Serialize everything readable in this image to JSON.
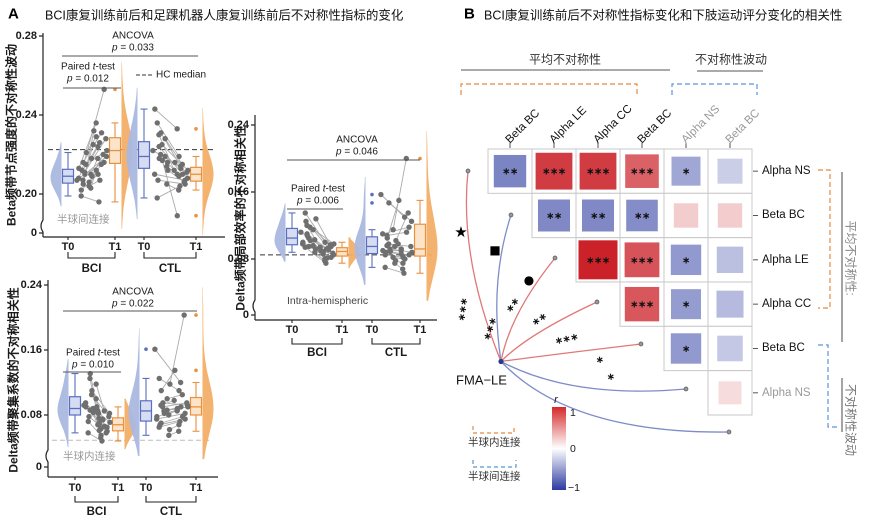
{
  "panel_a": {
    "label": "A",
    "title": "BCI康复训练前后和足踝机器人康复训练前后不对称性指标的变化"
  },
  "panel_b": {
    "label": "B",
    "title": "BCI康复训练前后不对称性指标变化和下肢运动评分变化的相关性",
    "top_groups": [
      {
        "label": "平均不对称性",
        "bracket_color": "#e8883c"
      },
      {
        "label": "不对称性波动",
        "bracket_color": "#5b93d8"
      }
    ],
    "side_groups": [
      {
        "label": "平均不对称性:",
        "bracket_color": "#e8883c"
      },
      {
        "label": "不对称性波动",
        "bracket_color": "#5b93d8"
      }
    ],
    "node_label": "FMA−LE",
    "colorbar": {
      "label": "r",
      "tick_top": "1",
      "tick_mid": "0",
      "tick_bottom": "−1",
      "pos_color": "#d42a2a",
      "neg_color": "#2b3ba0"
    },
    "legend": [
      {
        "label": "半球内连接",
        "color": "#e8883c"
      },
      {
        "label": "半球间连接",
        "color": "#5b93d8"
      }
    ]
  },
  "chart_data": [
    {
      "type": "raincloud_paired_box",
      "id": "A1",
      "ylabel": "Beta频带节点强度的不对称性波动",
      "region_note": "半球间连接",
      "yticks": [
        0,
        0.2,
        0.24,
        0.28
      ],
      "ylim": [
        0.19,
        0.28
      ],
      "hc_median": 0.2225,
      "stats": {
        "ancova_label": "ANCOVA",
        "ancova_p": "p = 0.033",
        "paired_label": "Paired t-test",
        "paired_p": "p = 0.012",
        "hc_label": "HC median"
      },
      "xticklabels": [
        "T0",
        "T1",
        "T0",
        "T1"
      ],
      "group_labels": [
        "BCI",
        "CTL"
      ],
      "series": [
        {
          "name": "BCI",
          "t0": [
            0.203,
            0.207,
            0.21,
            0.212,
            0.205,
            0.215,
            0.208,
            0.202,
            0.211,
            0.218,
            0.206,
            0.213,
            0.209,
            0.204,
            0.216,
            0.21,
            0.207,
            0.221,
            0.199
          ],
          "t1": [
            0.212,
            0.226,
            0.219,
            0.253,
            0.232,
            0.222,
            0.216,
            0.21,
            0.228,
            0.224,
            0.215,
            0.236,
            0.22,
            0.207,
            0.231,
            0.218,
            0.225,
            0.229,
            0.196
          ]
        },
        {
          "name": "CTL",
          "t0": [
            0.214,
            0.222,
            0.231,
            0.207,
            0.218,
            0.225,
            0.21,
            0.236,
            0.22,
            0.216,
            0.228,
            0.243,
            0.212,
            0.219,
            0.224,
            0.205,
            0.23,
            0.217,
            0.198
          ],
          "t1": [
            0.21,
            0.214,
            0.208,
            0.205,
            0.216,
            0.212,
            0.207,
            0.219,
            0.211,
            0.209,
            0.215,
            0.233,
            0.206,
            0.213,
            0.21,
            0.202,
            0.212,
            0.189,
            0.204
          ]
        }
      ]
    },
    {
      "type": "raincloud_paired_box",
      "id": "A2",
      "ylabel": "Delta频带聚集系数的不对称相关性",
      "region_note": "半球内连接",
      "yticks": [
        0,
        0.08,
        0.16,
        0.24
      ],
      "ylim": [
        0.04,
        0.24
      ],
      "hc_median": 0.049,
      "stats": {
        "ancova_label": "ANCOVA",
        "ancova_p": "p = 0.022",
        "paired_label": "Paired t-test",
        "paired_p": "p = 0.010",
        "hc_label": ""
      },
      "xticklabels": [
        "T0",
        "T1",
        "T0",
        "T1"
      ],
      "group_labels": [
        "BCI",
        "CTL"
      ],
      "series": [
        {
          "name": "BCI",
          "t0": [
            0.085,
            0.092,
            0.11,
            0.078,
            0.131,
            0.088,
            0.095,
            0.072,
            0.105,
            0.082,
            0.118,
            0.09,
            0.076,
            0.1,
            0.086,
            0.068,
            0.125,
            0.083,
            0.058
          ],
          "t1": [
            0.068,
            0.075,
            0.082,
            0.06,
            0.09,
            0.071,
            0.065,
            0.055,
            0.078,
            0.063,
            0.085,
            0.07,
            0.058,
            0.074,
            0.066,
            0.052,
            0.088,
            0.061,
            0.048
          ]
        },
        {
          "name": "CTL",
          "t0": [
            0.08,
            0.161,
            0.095,
            0.068,
            0.11,
            0.085,
            0.075,
            0.125,
            0.09,
            0.062,
            0.1,
            0.078,
            0.118,
            0.086,
            0.07,
            0.055,
            0.092,
            0.082,
            0.065
          ],
          "t1": [
            0.088,
            0.12,
            0.092,
            0.075,
            0.135,
            0.09,
            0.082,
            0.11,
            0.095,
            0.068,
            0.105,
            0.085,
            0.203,
            0.09,
            0.078,
            0.06,
            0.098,
            0.086,
            0.072
          ]
        }
      ]
    },
    {
      "type": "raincloud_paired_box",
      "id": "A3",
      "ylabel": "Delta频带局部效率的不对称相关性",
      "region_note": "Intra-hemispheric",
      "yticks": [
        0,
        0.08,
        0.16,
        0.24
      ],
      "ylim": [
        0.05,
        0.24
      ],
      "hc_median": 0.085,
      "stats": {
        "ancova_label": "ANCOVA",
        "ancova_p": "p = 0.046",
        "paired_label": "Paired t-test",
        "paired_p": "p = 0.006",
        "hc_label": ""
      },
      "xticklabels": [
        "T0",
        "T1",
        "T0",
        "T1"
      ],
      "group_labels": [
        "BCI",
        "CTL"
      ],
      "series": [
        {
          "name": "BCI",
          "t0": [
            0.103,
            0.112,
            0.095,
            0.125,
            0.108,
            0.118,
            0.098,
            0.135,
            0.105,
            0.092,
            0.115,
            0.1,
            0.128,
            0.096,
            0.11,
            0.088,
            0.12,
            0.102,
            0.094
          ],
          "t1": [
            0.088,
            0.092,
            0.085,
            0.095,
            0.09,
            0.098,
            0.082,
            0.1,
            0.087,
            0.08,
            0.093,
            0.086,
            0.097,
            0.081,
            0.091,
            0.078,
            0.094,
            0.089,
            0.075
          ]
        },
        {
          "name": "CTL",
          "t0": [
            0.095,
            0.157,
            0.147,
            0.088,
            0.105,
            0.092,
            0.11,
            0.085,
            0.098,
            0.078,
            0.115,
            0.09,
            0.102,
            0.082,
            0.108,
            0.075,
            0.096,
            0.089,
            0.07
          ],
          "t1": [
            0.092,
            0.13,
            0.125,
            0.085,
            0.15,
            0.088,
            0.118,
            0.082,
            0.095,
            0.075,
            0.2,
            0.09,
            0.135,
            0.08,
            0.112,
            0.068,
            0.098,
            0.086,
            0.063
          ]
        }
      ]
    },
    {
      "type": "correlation_matrix",
      "id": "B",
      "columns": [
        {
          "label": "Beta BC",
          "group": "avg"
        },
        {
          "label": "Alpha LE",
          "group": "avg"
        },
        {
          "label": "Alpha CC",
          "group": "avg"
        },
        {
          "label": "Beta BC",
          "group": "avg"
        },
        {
          "label": "Alpha NS",
          "group": "fluct"
        },
        {
          "label": "Beta BC",
          "group": "fluct"
        }
      ],
      "rows": [
        {
          "label": "Alpha NS",
          "group": "avg"
        },
        {
          "label": "Beta BC",
          "group": "avg"
        },
        {
          "label": "Alpha LE",
          "group": "avg"
        },
        {
          "label": "Alpha CC",
          "group": "avg"
        },
        {
          "label": "Beta BC",
          "group": "avg"
        },
        {
          "label": "Alpha NS",
          "group": "fluct"
        }
      ],
      "cells": [
        {
          "row": 0,
          "col": 0,
          "r": -0.62,
          "sig": "**"
        },
        {
          "row": 0,
          "col": 1,
          "r": 0.84,
          "sig": "***"
        },
        {
          "row": 0,
          "col": 2,
          "r": 0.84,
          "sig": "***"
        },
        {
          "row": 0,
          "col": 3,
          "r": 0.68,
          "sig": "***"
        },
        {
          "row": 0,
          "col": 4,
          "r": -0.45,
          "sig": "*"
        },
        {
          "row": 0,
          "col": 5,
          "r": -0.25,
          "sig": ""
        },
        {
          "row": 1,
          "col": 1,
          "r": -0.6,
          "sig": "**"
        },
        {
          "row": 1,
          "col": 2,
          "r": -0.6,
          "sig": "**"
        },
        {
          "row": 1,
          "col": 3,
          "r": -0.58,
          "sig": "**"
        },
        {
          "row": 1,
          "col": 4,
          "r": 0.22,
          "sig": ""
        },
        {
          "row": 1,
          "col": 5,
          "r": 0.22,
          "sig": ""
        },
        {
          "row": 2,
          "col": 2,
          "r": 0.95,
          "sig": "***"
        },
        {
          "row": 2,
          "col": 3,
          "r": 0.74,
          "sig": "***"
        },
        {
          "row": 2,
          "col": 4,
          "r": -0.52,
          "sig": "*"
        },
        {
          "row": 2,
          "col": 5,
          "r": -0.32,
          "sig": ""
        },
        {
          "row": 3,
          "col": 3,
          "r": 0.72,
          "sig": "***"
        },
        {
          "row": 3,
          "col": 4,
          "r": -0.5,
          "sig": "*"
        },
        {
          "row": 3,
          "col": 5,
          "r": -0.35,
          "sig": ""
        },
        {
          "row": 4,
          "col": 4,
          "r": -0.52,
          "sig": "*"
        },
        {
          "row": 4,
          "col": 5,
          "r": -0.28,
          "sig": ""
        },
        {
          "row": 5,
          "col": 5,
          "r": 0.15,
          "sig": ""
        }
      ],
      "fma_links": [
        {
          "target": "Alpha NS (平均不对称性)",
          "sign": "pos",
          "sig": "***",
          "marker": "★"
        },
        {
          "target": "Beta BC (平均不对称性)",
          "sign": "neg",
          "sig": "***",
          "marker": "■"
        },
        {
          "target": "Alpha LE (平均不对称性)",
          "sign": "pos",
          "sig": "**",
          "marker": "●"
        },
        {
          "target": "Alpha CC (平均不对称性)",
          "sign": "pos",
          "sig": "**",
          "marker": ""
        },
        {
          "target": "Beta BC (平均不对称性)",
          "sign": "pos",
          "sig": "***",
          "marker": ""
        },
        {
          "target": "Alpha NS (不对称性波动)",
          "sign": "neg",
          "sig": "*",
          "marker": ""
        },
        {
          "target": "Beta BC (不对称性波动)",
          "sign": "neg",
          "sig": "*",
          "marker": ""
        }
      ]
    }
  ]
}
